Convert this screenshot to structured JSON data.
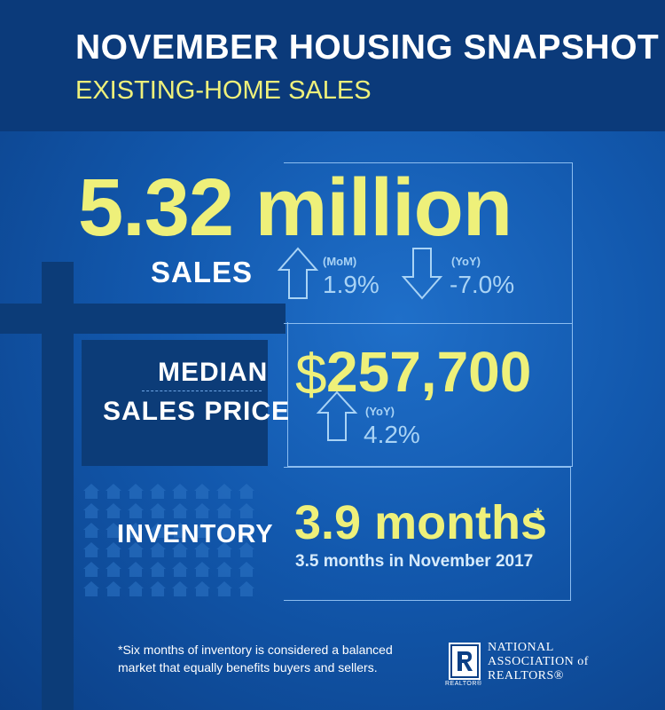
{
  "header": {
    "title": "NOVEMBER HOUSING SNAPSHOT",
    "subtitle": "EXISTING-HOME SALES"
  },
  "sales": {
    "value": "5.32 million",
    "label": "SALES",
    "mom_tag": "(MoM)",
    "mom_value": "1.9%",
    "mom_direction": "up-arrow-icon",
    "yoy_tag": "(YoY)",
    "yoy_value": "-7.0%",
    "yoy_direction": "down-arrow-icon"
  },
  "median_price": {
    "label_line1": "MEDIAN",
    "label_line2": "SALES PRICE",
    "currency": "$",
    "value": "257,700",
    "yoy_tag": "(YoY)",
    "yoy_value": "4.2%",
    "yoy_direction": "up-arrow-icon"
  },
  "inventory": {
    "label": "INVENTORY",
    "value": "3.9 months",
    "asterisk": "*",
    "comparison": "3.5 months in November 2017"
  },
  "footnote": {
    "line1": "*Six months of inventory is considered a balanced",
    "line2": "market that equally benefits buyers and sellers."
  },
  "logo": {
    "line1": "NATIONAL",
    "line2": "ASSOCIATION of",
    "line3": "REALTORS®",
    "mark_text": "REALTOR®"
  },
  "colors": {
    "accent_yellow": "#eef07a",
    "light_blue": "#a9d3f5",
    "dark_navy": "#0c3c78",
    "header_navy": "#0b3a7a"
  }
}
